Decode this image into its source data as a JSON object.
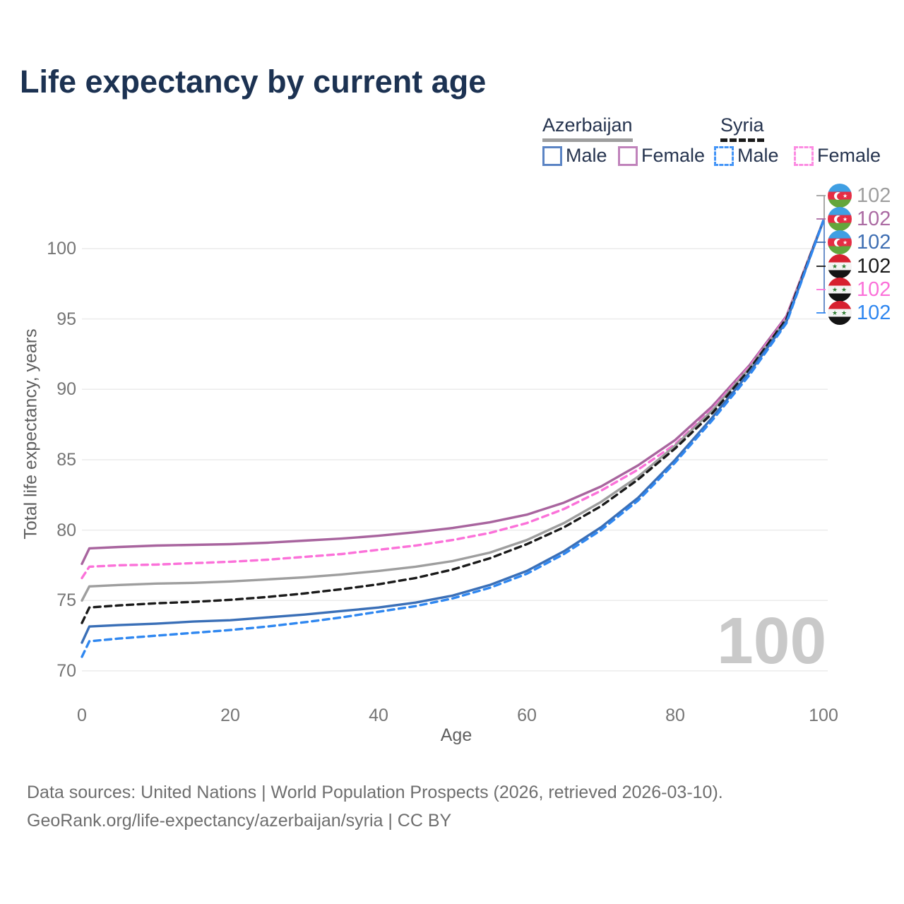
{
  "page": {
    "title": "Life expectancy by current age",
    "watermark_age": "100"
  },
  "legend": {
    "groups": [
      {
        "label": "Azerbaijan",
        "line_style": "solid",
        "line_color": "#9e9e9e"
      },
      {
        "label": "Syria",
        "line_style": "dashed",
        "line_color": "#1a1a1a"
      }
    ],
    "items": [
      {
        "label": "Male",
        "swatch_color": "#5b84c4",
        "swatch_style": "solid"
      },
      {
        "label": "Female",
        "swatch_color": "#c083bb",
        "swatch_style": "solid"
      },
      {
        "label": "Male",
        "swatch_color": "#4495f7",
        "swatch_style": "dashed"
      },
      {
        "label": "Female",
        "swatch_color": "#fc8ce2",
        "swatch_style": "dashed"
      }
    ]
  },
  "chart_data": {
    "type": "line",
    "title": "Life expectancy by current age",
    "xlabel": "Age",
    "ylabel": "Total life expectancy, years",
    "xlim": [
      0,
      100
    ],
    "ylim": [
      69,
      103
    ],
    "xticks": [
      0,
      20,
      40,
      60,
      80,
      100
    ],
    "yticks": [
      70,
      75,
      80,
      85,
      90,
      95,
      100
    ],
    "grid": "horizontal-only",
    "legend_position": "top-right",
    "x": [
      0,
      1,
      5,
      10,
      15,
      20,
      25,
      30,
      35,
      40,
      45,
      50,
      55,
      60,
      65,
      70,
      75,
      80,
      85,
      90,
      95,
      100
    ],
    "series": [
      {
        "name": "Azerbaijan Female",
        "country": "azerbaijan",
        "color": "#a8649e",
        "dashed": false,
        "values": [
          77.6,
          78.7,
          78.8,
          78.9,
          78.95,
          79.0,
          79.1,
          79.25,
          79.4,
          79.6,
          79.85,
          80.15,
          80.55,
          81.1,
          81.95,
          83.1,
          84.6,
          86.4,
          88.8,
          91.7,
          95.2,
          102
        ]
      },
      {
        "name": "Syria Female",
        "country": "syria",
        "color": "#fb71d9",
        "dashed": true,
        "values": [
          76.6,
          77.4,
          77.5,
          77.55,
          77.65,
          77.75,
          77.9,
          78.1,
          78.3,
          78.6,
          78.9,
          79.3,
          79.8,
          80.5,
          81.5,
          82.8,
          84.3,
          86.1,
          88.6,
          91.6,
          95.1,
          102
        ]
      },
      {
        "name": "Azerbaijan All",
        "country": "azerbaijan",
        "color": "#9e9e9e",
        "dashed": false,
        "values": [
          75.0,
          76.0,
          76.1,
          76.2,
          76.25,
          76.35,
          76.5,
          76.65,
          76.85,
          77.1,
          77.4,
          77.8,
          78.4,
          79.3,
          80.5,
          82.0,
          83.8,
          86.0,
          88.5,
          91.5,
          95.0,
          102
        ]
      },
      {
        "name": "Syria All",
        "country": "syria",
        "color": "#1a1a1a",
        "dashed": true,
        "values": [
          73.4,
          74.5,
          74.65,
          74.8,
          74.9,
          75.05,
          75.25,
          75.5,
          75.8,
          76.15,
          76.6,
          77.2,
          78.0,
          79.0,
          80.2,
          81.7,
          83.6,
          85.8,
          88.3,
          91.4,
          95.0,
          102
        ]
      },
      {
        "name": "Azerbaijan Male",
        "country": "azerbaijan",
        "color": "#3a6fb7",
        "dashed": false,
        "values": [
          72.0,
          73.15,
          73.25,
          73.35,
          73.5,
          73.6,
          73.8,
          74.0,
          74.25,
          74.5,
          74.85,
          75.35,
          76.1,
          77.1,
          78.5,
          80.2,
          82.3,
          85.0,
          88.0,
          91.2,
          94.8,
          102
        ]
      },
      {
        "name": "Syria Male",
        "country": "syria",
        "color": "#2f87f0",
        "dashed": true,
        "values": [
          71.0,
          72.1,
          72.3,
          72.5,
          72.7,
          72.9,
          73.15,
          73.45,
          73.8,
          74.2,
          74.6,
          75.15,
          75.9,
          76.9,
          78.3,
          80.0,
          82.1,
          84.8,
          87.8,
          91.0,
          94.7,
          102
        ]
      }
    ],
    "end_labels": [
      {
        "country": "azerbaijan",
        "value": "102",
        "color": "#9e9e9e"
      },
      {
        "country": "azerbaijan",
        "value": "102",
        "color": "#ab6ba3"
      },
      {
        "country": "azerbaijan",
        "value": "102",
        "color": "#3f6fb3"
      },
      {
        "country": "syria",
        "value": "102",
        "color": "#1a1a1a"
      },
      {
        "country": "syria",
        "value": "102",
        "color": "#fb71d9"
      },
      {
        "country": "syria",
        "value": "102",
        "color": "#2f87f0"
      }
    ]
  },
  "footer": {
    "line1": "Data sources: United Nations | World Population Prospects (2026, retrieved 2026-03-10).",
    "line2": "GeoRank.org/life-expectancy/azerbaijan/syria | CC BY"
  }
}
